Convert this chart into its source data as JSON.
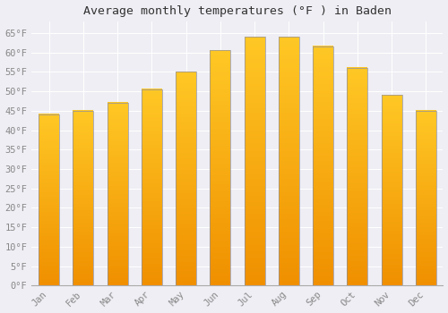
{
  "title": "Average monthly temperatures (°F ) in Baden",
  "months": [
    "Jan",
    "Feb",
    "Mar",
    "Apr",
    "May",
    "Jun",
    "Jul",
    "Aug",
    "Sep",
    "Oct",
    "Nov",
    "Dec"
  ],
  "values": [
    44,
    45,
    47,
    50.5,
    55,
    60.5,
    64,
    64,
    61.5,
    56,
    49,
    45
  ],
  "bar_color_top": "#FFC825",
  "bar_color_bottom": "#F09000",
  "bar_edge_color": "#9090A0",
  "background_color": "#EEEEF4",
  "grid_color": "#FFFFFF",
  "ylim": [
    0,
    68
  ],
  "yticks": [
    0,
    5,
    10,
    15,
    20,
    25,
    30,
    35,
    40,
    45,
    50,
    55,
    60,
    65
  ],
  "ylabel_suffix": "°F",
  "title_fontsize": 9.5,
  "tick_fontsize": 7.5,
  "tick_color": "#888888",
  "font_family": "monospace",
  "bar_width": 0.6
}
